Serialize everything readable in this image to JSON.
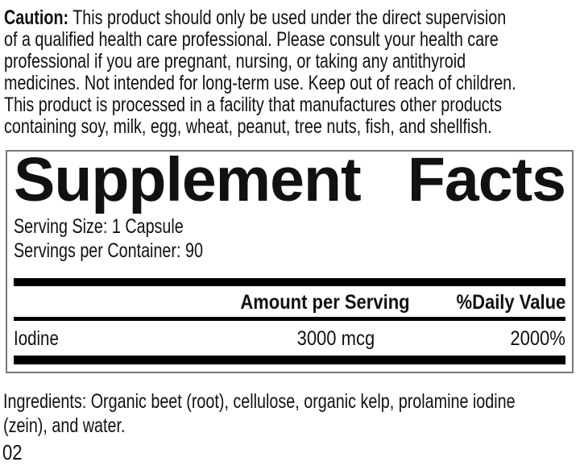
{
  "caution": {
    "label": "Caution:",
    "text": " This product should only be used under the direct supervision\nof a qualified health care professional. Please consult your health care\nprofessional if you are pregnant, nursing, or taking any antithyroid\nmedicines. Not intended for long-term use. Keep out of reach of children.\nThis product is processed in a facility that manufactures other products\ncontaining soy, milk, egg, wheat, peanut, tree nuts, fish, and shellfish."
  },
  "panel": {
    "title_word1": "Supplement",
    "title_word2": "Facts",
    "serving_size": "Serving Size: 1 Capsule",
    "servings_per_container": "Servings per Container: 90",
    "columns": {
      "amount": "Amount per Serving",
      "daily_value": "%Daily Value"
    },
    "rows": [
      {
        "name": "Iodine",
        "amount": "3000 mcg",
        "daily_value": "2000%"
      }
    ]
  },
  "ingredients": {
    "text": "Ingredients: Organic beet (root), cellulose, organic kelp, prolamine iodine\n(zein), and water."
  },
  "footer": {
    "code": "02"
  },
  "colors": {
    "background": "#ffffff",
    "text": "#111111",
    "bar": "#000000",
    "panel_border": "#787878"
  }
}
